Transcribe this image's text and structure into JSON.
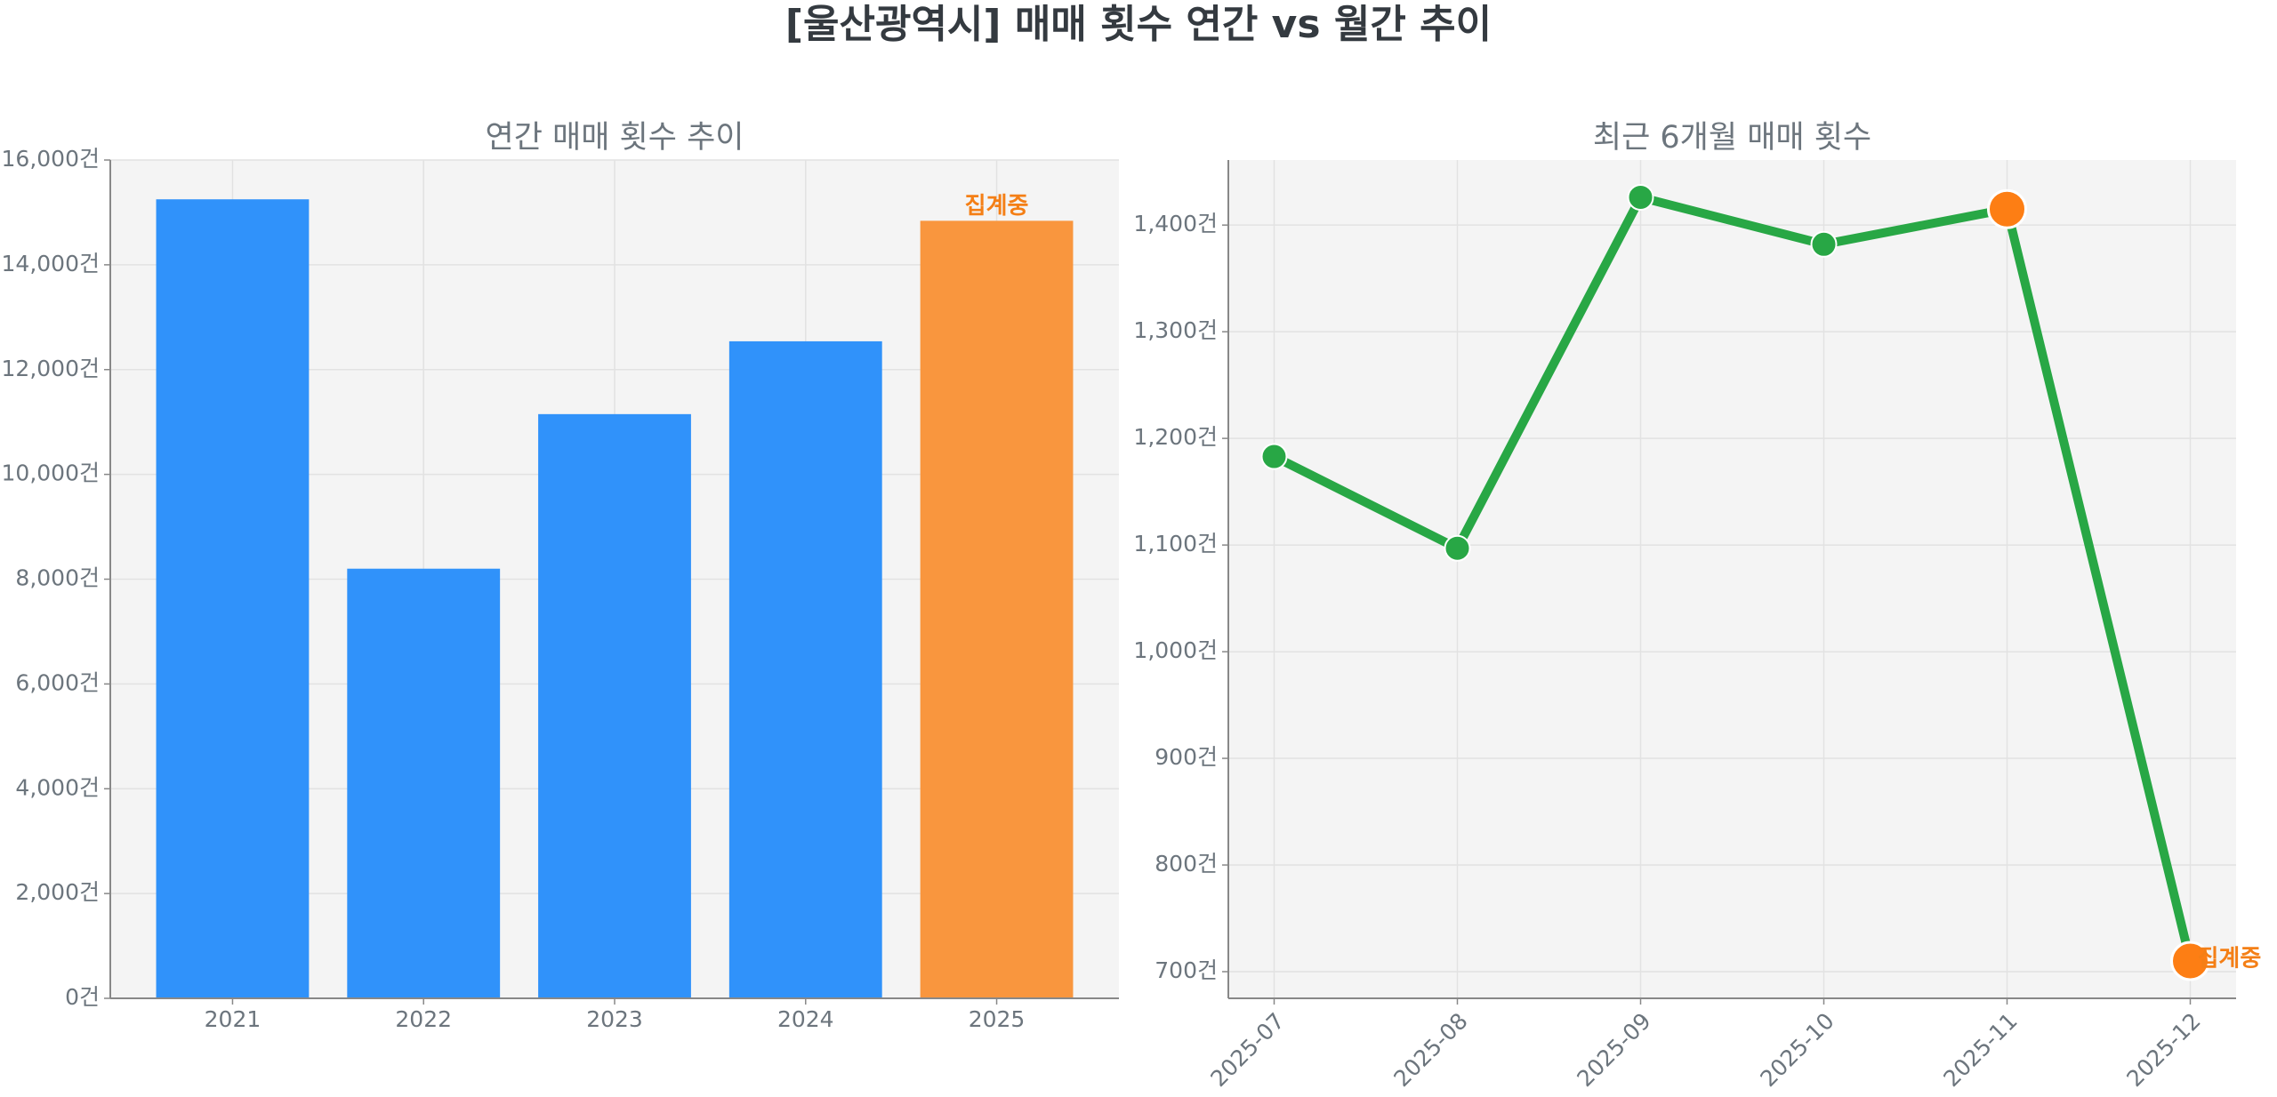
{
  "title": "[울산광역시] 매매 횟수 연간 vs 월간 추이",
  "chart_data": [
    {
      "type": "bar",
      "title": "연간 매매 횟수 추이",
      "categories": [
        "2021",
        "2022",
        "2023",
        "2024",
        "2025"
      ],
      "values": [
        15250,
        8200,
        11150,
        12540,
        14840
      ],
      "colors": [
        "#3092fa",
        "#3092fa",
        "#3092fa",
        "#3092fa",
        "#f9963e"
      ],
      "ylim": [
        0,
        16000
      ],
      "yticks": [
        {
          "value": 0,
          "label": "0건"
        },
        {
          "value": 2000,
          "label": "2,000건"
        },
        {
          "value": 4000,
          "label": "4,000건"
        },
        {
          "value": 6000,
          "label": "6,000건"
        },
        {
          "value": 8000,
          "label": "8,000건"
        },
        {
          "value": 10000,
          "label": "10,000건"
        },
        {
          "value": 12000,
          "label": "12,000건"
        },
        {
          "value": 14000,
          "label": "14,000건"
        },
        {
          "value": 16000,
          "label": "16,000건"
        }
      ],
      "grid": true,
      "annotation": {
        "text": "집계중",
        "category": "2025",
        "color": "#f47f16"
      }
    },
    {
      "type": "line",
      "title": "최근 6개월 매매 횟수",
      "categories": [
        "2025-07",
        "2025-08",
        "2025-09",
        "2025-10",
        "2025-11",
        "2025-12"
      ],
      "values": [
        1183,
        1097,
        1426,
        1382,
        1415,
        710
      ],
      "color": "#28a745",
      "marker_colors": [
        "#28a745",
        "#28a745",
        "#28a745",
        "#28a745",
        "#fd7e14",
        "#fd7e14"
      ],
      "ylim": [
        675,
        1461
      ],
      "yticks": [
        {
          "value": 700,
          "label": "700건"
        },
        {
          "value": 800,
          "label": "800건"
        },
        {
          "value": 900,
          "label": "900건"
        },
        {
          "value": 1000,
          "label": "1,000건"
        },
        {
          "value": 1100,
          "label": "1,100건"
        },
        {
          "value": 1200,
          "label": "1,200건"
        },
        {
          "value": 1300,
          "label": "1,300건"
        },
        {
          "value": 1400,
          "label": "1,400건"
        }
      ],
      "grid": true,
      "annotation": {
        "text": "집계중",
        "category": "2025-12",
        "color": "#f47f16"
      }
    }
  ]
}
